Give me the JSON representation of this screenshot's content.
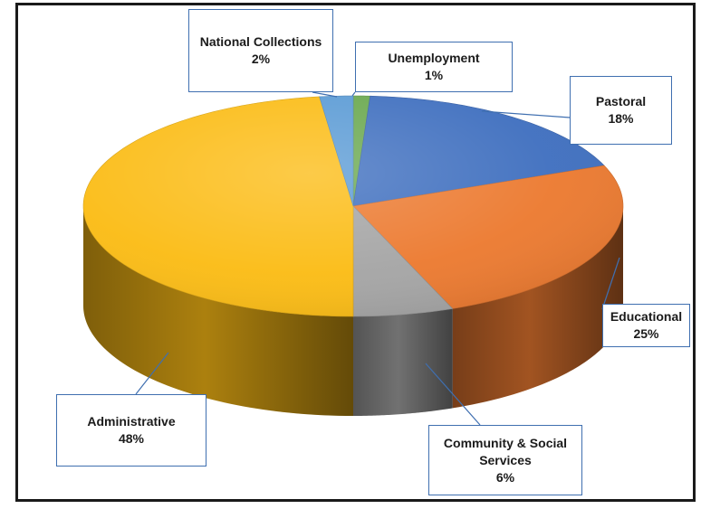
{
  "chart_data": {
    "type": "pie",
    "style": "3d",
    "slices": [
      {
        "label": "Unemployment",
        "value": 1,
        "color": "#6aa84f"
      },
      {
        "label": "Pastoral",
        "value": 18,
        "color": "#3f6fbf"
      },
      {
        "label": "Educational",
        "value": 25,
        "color": "#ec7a30"
      },
      {
        "label": "Community & Social Services",
        "value": 6,
        "color": "#a5a5a5"
      },
      {
        "label": "Administrative",
        "value": 48,
        "color": "#fbbc15"
      },
      {
        "label": "National Collections",
        "value": 2,
        "color": "#5b9bd5"
      }
    ],
    "labels": {
      "unemployment": {
        "name": "Unemployment",
        "pct": "1%"
      },
      "pastoral": {
        "name": "Pastoral",
        "pct": "18%"
      },
      "educational": {
        "name": "Educational",
        "pct": "25%"
      },
      "community": {
        "name_line1": "Community & Social",
        "name_line2": "Services",
        "pct": "6%"
      },
      "administrative": {
        "name": "Administrative",
        "pct": "48%"
      },
      "national": {
        "name": "National Collections",
        "pct": "2%"
      }
    }
  }
}
